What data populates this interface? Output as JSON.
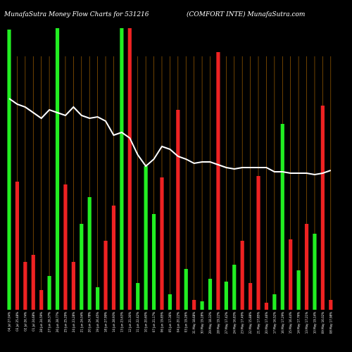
{
  "header": {
    "left": "MunafaSutra  Money Flow  Charts for 531216",
    "right": "(COMFORT INTE) MunafaSutra.com"
  },
  "colors": {
    "background": "#000000",
    "up": "#22ee22",
    "down": "#ee2222",
    "grid": "#b36b00",
    "line": "#ffffff"
  },
  "chart_data": {
    "type": "bar",
    "title": "",
    "xlabel": "",
    "ylabel": "",
    "ylim": [
      0,
      100
    ],
    "categories": [
      "04 Jul 27.04%",
      "03 Jul 25.48%",
      "02 Jul 26.74%",
      "01 Jul 24.68%",
      "28 Jun 24.59%",
      "27 Jun 26.37%",
      "26 Jun 28.77%",
      "25 Jun 25.29%",
      "24 Jun 23.28%",
      "21 Jun 24.04%",
      "20 Jun 24.78%",
      "19 Jun 26.45%",
      "18 Jun 27.99%",
      "14 Jun 28.93%",
      "13 Jun 23.63%",
      "12 Jun 21.30%",
      "11 Jun 22.42%",
      "10 Jun 20.60%",
      "07 Jun 21.17%",
      "06 Jun 19.85%",
      "05 Jun 17.36%",
      "04 Jun 20.22%",
      "03 Jun 19.26%",
      "31 May 18.68%",
      "30 May 19.28%",
      "29 May 18.33%",
      "28 May 19.22%",
      "27 May 17.42%",
      "24 May 16.83%",
      "23 May 17.49%",
      "22 May 15.88%",
      "21 May 17.85%",
      "20 May 17.46%",
      "17 May 16.52%",
      "16 May 17.29%",
      "15 May 16.44%",
      "14 May 17.76%",
      "13 May 17.21%",
      "10 May 19.14%",
      "09 May 16.02%",
      "08 May 17.98%"
    ],
    "series": [
      {
        "values": [
          99.5,
          45.5,
          17,
          19.5,
          7,
          12,
          100,
          44.5,
          17,
          30.5,
          40,
          8,
          24.5,
          37,
          100,
          100,
          9.5,
          51,
          34,
          47,
          5.5,
          71,
          14.5,
          3.5,
          3,
          11,
          91.5,
          10,
          16,
          24.5,
          9.5,
          47.5,
          2.5,
          5.5,
          66,
          25,
          14,
          30.5,
          27,
          72.5,
          3.5
        ]
      },
      {
        "values": [
          75,
          73,
          72,
          70,
          68,
          71,
          70,
          69,
          72,
          69,
          68,
          68.5,
          67,
          62,
          63,
          61,
          55,
          51,
          53.5,
          58,
          57,
          54.5,
          53.5,
          52,
          52.5,
          52.5,
          51.5,
          50.5,
          50,
          50.5,
          50.5,
          50.5,
          50.5,
          49,
          49,
          48.5,
          48.5,
          48.5,
          48,
          48.5,
          49.5
        ]
      }
    ],
    "bar_colors": [
      "green",
      "red",
      "red",
      "red",
      "red",
      "green",
      "green",
      "red",
      "red",
      "green",
      "green",
      "green",
      "red",
      "red",
      "green",
      "red",
      "green",
      "green",
      "green",
      "red",
      "green",
      "red",
      "green",
      "red",
      "green",
      "green",
      "red",
      "green",
      "green",
      "red",
      "red",
      "red",
      "red",
      "green",
      "green",
      "red",
      "green",
      "red",
      "green",
      "red",
      "red"
    ],
    "grid": "vertical"
  }
}
